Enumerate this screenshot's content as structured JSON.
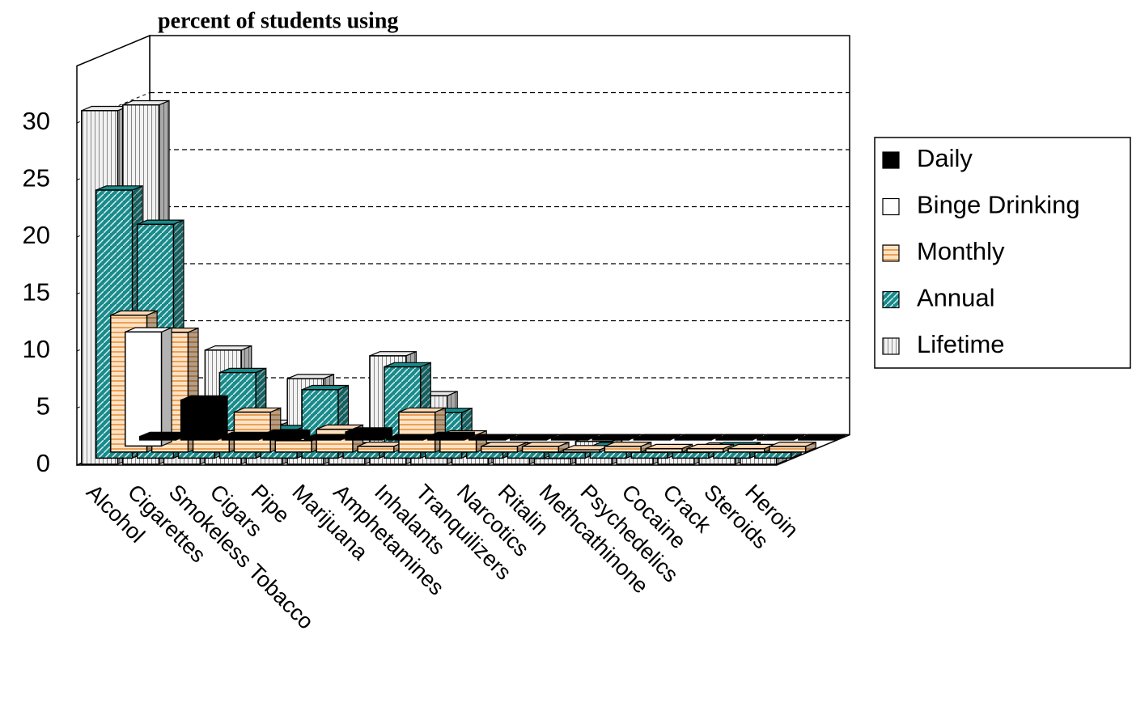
{
  "chart_data": {
    "type": "bar3d",
    "title": "percent of students using",
    "categories": [
      "Alcohol",
      "Cigarettes",
      "Smokeless Tobacco",
      "Cigars",
      "Pipe",
      "Marijuana",
      "Amphetamines",
      "Inhalants",
      "Tranquilizers",
      "Narcotics",
      "Ritalin",
      "Methcathinone",
      "Psychedelics",
      "Cocaine",
      "Crack",
      "Steroids",
      "Heroin"
    ],
    "series": [
      {
        "name": "Daily",
        "color": "#000000",
        "values": [
          0.3,
          3.5,
          0.3,
          0.5,
          0.1,
          0.7,
          0.1,
          0.3,
          0.1,
          0.1,
          0.1,
          0.1,
          0.1,
          0.1,
          0.1,
          0.1,
          0.1
        ]
      },
      {
        "name": "Binge Drinking",
        "color": "#ffffff",
        "values": [
          10,
          null,
          null,
          null,
          null,
          null,
          null,
          null,
          null,
          null,
          null,
          null,
          null,
          null,
          null,
          null,
          null
        ]
      },
      {
        "name": "Monthly",
        "color": "#fdd9b5",
        "values": [
          12,
          10.5,
          1.5,
          3.5,
          1,
          2,
          0.5,
          3.5,
          1.5,
          0.5,
          0.5,
          0.2,
          0.5,
          0.3,
          0.3,
          0.3,
          0.5
        ]
      },
      {
        "name": "Annual",
        "color": "#1a8a8a",
        "values": [
          23.5,
          20.5,
          2.5,
          7.5,
          2.5,
          6,
          1,
          8,
          4,
          1,
          1,
          0.5,
          1,
          0.5,
          0.5,
          1,
          0.5
        ]
      },
      {
        "name": "Lifetime",
        "color": "#e8e8e8",
        "values": [
          31,
          31.5,
          5.5,
          10,
          3.5,
          7.5,
          1.5,
          9.5,
          6,
          1.5,
          1.5,
          0.5,
          2,
          1,
          1,
          1.5,
          1
        ]
      }
    ],
    "ylim": [
      0,
      35
    ],
    "yticks": [
      0,
      5,
      10,
      15,
      20,
      25,
      30
    ],
    "grid": true,
    "legend": "right"
  }
}
